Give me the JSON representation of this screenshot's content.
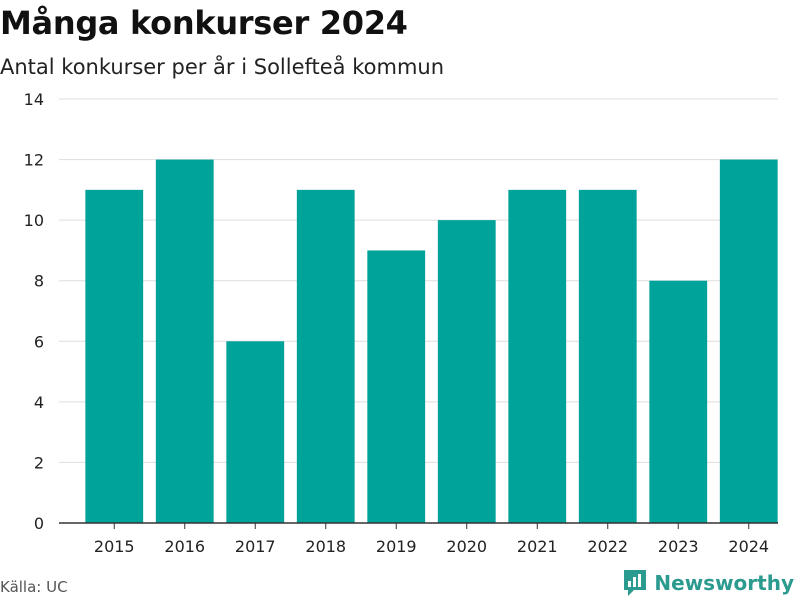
{
  "colors": {
    "bar": "#00a39a",
    "brand": "#2b9a8f"
  },
  "chart_data": {
    "type": "bar",
    "title": "Många konkurser 2024",
    "subtitle": "Antal konkurser per år i Sollefteå kommun",
    "xlabel": "",
    "ylabel": "",
    "categories": [
      "2015",
      "2016",
      "2017",
      "2018",
      "2019",
      "2020",
      "2021",
      "2022",
      "2023",
      "2024"
    ],
    "values": [
      11,
      12,
      6,
      11,
      9,
      10,
      11,
      11,
      8,
      12
    ],
    "ylim": [
      0,
      14
    ],
    "yticks": [
      0,
      2,
      4,
      6,
      8,
      10,
      12,
      14
    ],
    "grid": true,
    "legend": "none"
  },
  "footer": {
    "source": "Källa: UC",
    "brand": "Newsworthy"
  }
}
